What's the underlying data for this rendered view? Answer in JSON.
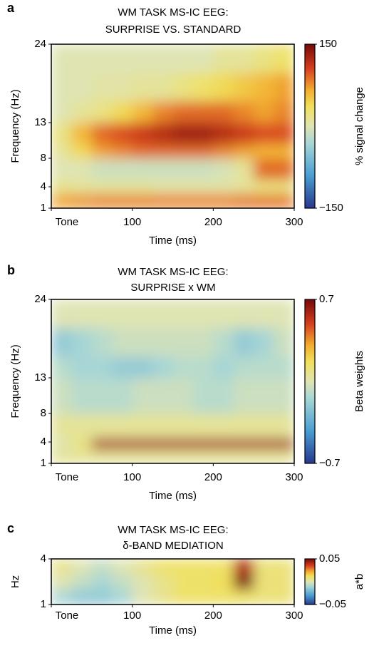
{
  "chart_data": [
    {
      "type": "heatmap",
      "panel_label": "a",
      "title": [
        "WM TASK MS-IC EEG:",
        "SURPRISE VS. STANDARD"
      ],
      "x_label": "Time (ms)",
      "y_label": "Frequency (Hz)",
      "colorbar_label": "% signal change",
      "xlim": [
        0,
        300
      ],
      "xticks": [
        {
          "value": 0,
          "label": "Tone"
        },
        100,
        200,
        300
      ],
      "ylim": [
        1,
        24
      ],
      "yticks": [
        1,
        4,
        8,
        13,
        24
      ],
      "clim": [
        -150,
        150
      ],
      "cticks": [
        {
          "value": -150,
          "label": "−150"
        },
        150
      ],
      "xbins": [
        0,
        25,
        50,
        75,
        100,
        125,
        150,
        175,
        200,
        225,
        250,
        275,
        300
      ],
      "ybins": [
        1,
        3,
        5,
        8,
        10,
        13,
        16,
        20,
        24
      ],
      "z": [
        [
          70,
          75,
          80,
          80,
          80,
          80,
          80,
          80,
          80,
          85,
          85,
          85
        ],
        [
          15,
          10,
          10,
          10,
          10,
          5,
          5,
          5,
          5,
          10,
          20,
          20
        ],
        [
          0,
          0,
          -10,
          -10,
          -10,
          -10,
          -10,
          -10,
          -5,
          10,
          90,
          90
        ],
        [
          10,
          40,
          70,
          80,
          90,
          90,
          90,
          90,
          80,
          70,
          60,
          60
        ],
        [
          20,
          60,
          90,
          100,
          110,
          120,
          130,
          130,
          120,
          110,
          100,
          100
        ],
        [
          0,
          10,
          20,
          40,
          60,
          80,
          90,
          90,
          90,
          80,
          70,
          80
        ],
        [
          0,
          0,
          5,
          5,
          10,
          10,
          20,
          30,
          40,
          50,
          60,
          70
        ],
        [
          0,
          0,
          0,
          0,
          0,
          0,
          0,
          0,
          10,
          10,
          20,
          30
        ]
      ]
    },
    {
      "type": "heatmap",
      "panel_label": "b",
      "title": [
        "WM TASK MS-IC EEG:",
        "SURPRISE x WM"
      ],
      "x_label": "Time (ms)",
      "y_label": "Frequency (Hz)",
      "colorbar_label": "Beta weights",
      "xlim": [
        0,
        300
      ],
      "xticks": [
        {
          "value": 0,
          "label": "Tone"
        },
        100,
        200,
        300
      ],
      "ylim": [
        1,
        24
      ],
      "yticks": [
        1,
        4,
        8,
        13,
        24
      ],
      "clim": [
        -0.7,
        0.7
      ],
      "cticks": [
        {
          "value": -0.7,
          "label": "−0.7"
        },
        0.7
      ],
      "xbins": [
        0,
        25,
        50,
        75,
        100,
        125,
        150,
        175,
        200,
        225,
        250,
        275,
        300
      ],
      "ybins": [
        1,
        3,
        4.5,
        8,
        13,
        16,
        20,
        24
      ],
      "z": [
        [
          0.05,
          0.05,
          0.05,
          0.05,
          0.05,
          0.05,
          0.05,
          0.05,
          0.05,
          0.05,
          0.05,
          0.05
        ],
        [
          0,
          0.1,
          0.6,
          0.6,
          0.6,
          0.6,
          0.6,
          0.6,
          0.6,
          0.6,
          0.6,
          0.6
        ],
        [
          0.05,
          0.05,
          0.05,
          0.05,
          0.05,
          0.05,
          0.05,
          0.05,
          0.05,
          0.05,
          0.05,
          0.05
        ],
        [
          -0.05,
          -0.1,
          -0.1,
          -0.1,
          -0.05,
          -0.05,
          -0.05,
          -0.1,
          -0.1,
          -0.05,
          -0.05,
          -0.05
        ],
        [
          -0.1,
          -0.15,
          -0.15,
          -0.2,
          -0.2,
          -0.15,
          -0.1,
          -0.1,
          -0.15,
          -0.1,
          -0.1,
          -0.1
        ],
        [
          -0.2,
          -0.15,
          -0.1,
          -0.05,
          -0.05,
          -0.05,
          -0.05,
          -0.05,
          -0.1,
          -0.2,
          -0.15,
          -0.05
        ],
        [
          0,
          0,
          0,
          0,
          0,
          0,
          0,
          0,
          0,
          0,
          0,
          0
        ]
      ]
    },
    {
      "type": "heatmap",
      "panel_label": "c",
      "title": [
        "WM TASK MS-IC EEG:",
        "δ-BAND MEDIATION"
      ],
      "x_label": "Time (ms)",
      "y_label": "Hz",
      "colorbar_label": "a*b",
      "xlim": [
        0,
        300
      ],
      "xticks": [
        {
          "value": 0,
          "label": "Tone"
        },
        100,
        200,
        300
      ],
      "ylim": [
        1,
        4
      ],
      "yticks": [
        1,
        4
      ],
      "clim": [
        -0.05,
        0.05
      ],
      "cticks": [
        {
          "value": -0.05,
          "label": "−0.05"
        },
        0.05
      ],
      "xbins": [
        0,
        25,
        50,
        75,
        100,
        125,
        150,
        175,
        200,
        225,
        250,
        275,
        300
      ],
      "ybins": [
        1,
        2,
        3,
        4
      ],
      "z": [
        [
          -0.01,
          -0.015,
          -0.015,
          -0.01,
          0,
          0.005,
          0.01,
          0.01,
          0.01,
          0.01,
          0.008,
          0.008
        ],
        [
          0,
          -0.005,
          -0.01,
          -0.005,
          0,
          0.005,
          0.01,
          0.01,
          0.012,
          0.05,
          0.008,
          0.008
        ],
        [
          0.005,
          0,
          -0.005,
          0,
          0.005,
          0.01,
          0.01,
          0.01,
          0.01,
          0.04,
          0.008,
          0.008
        ]
      ]
    }
  ]
}
